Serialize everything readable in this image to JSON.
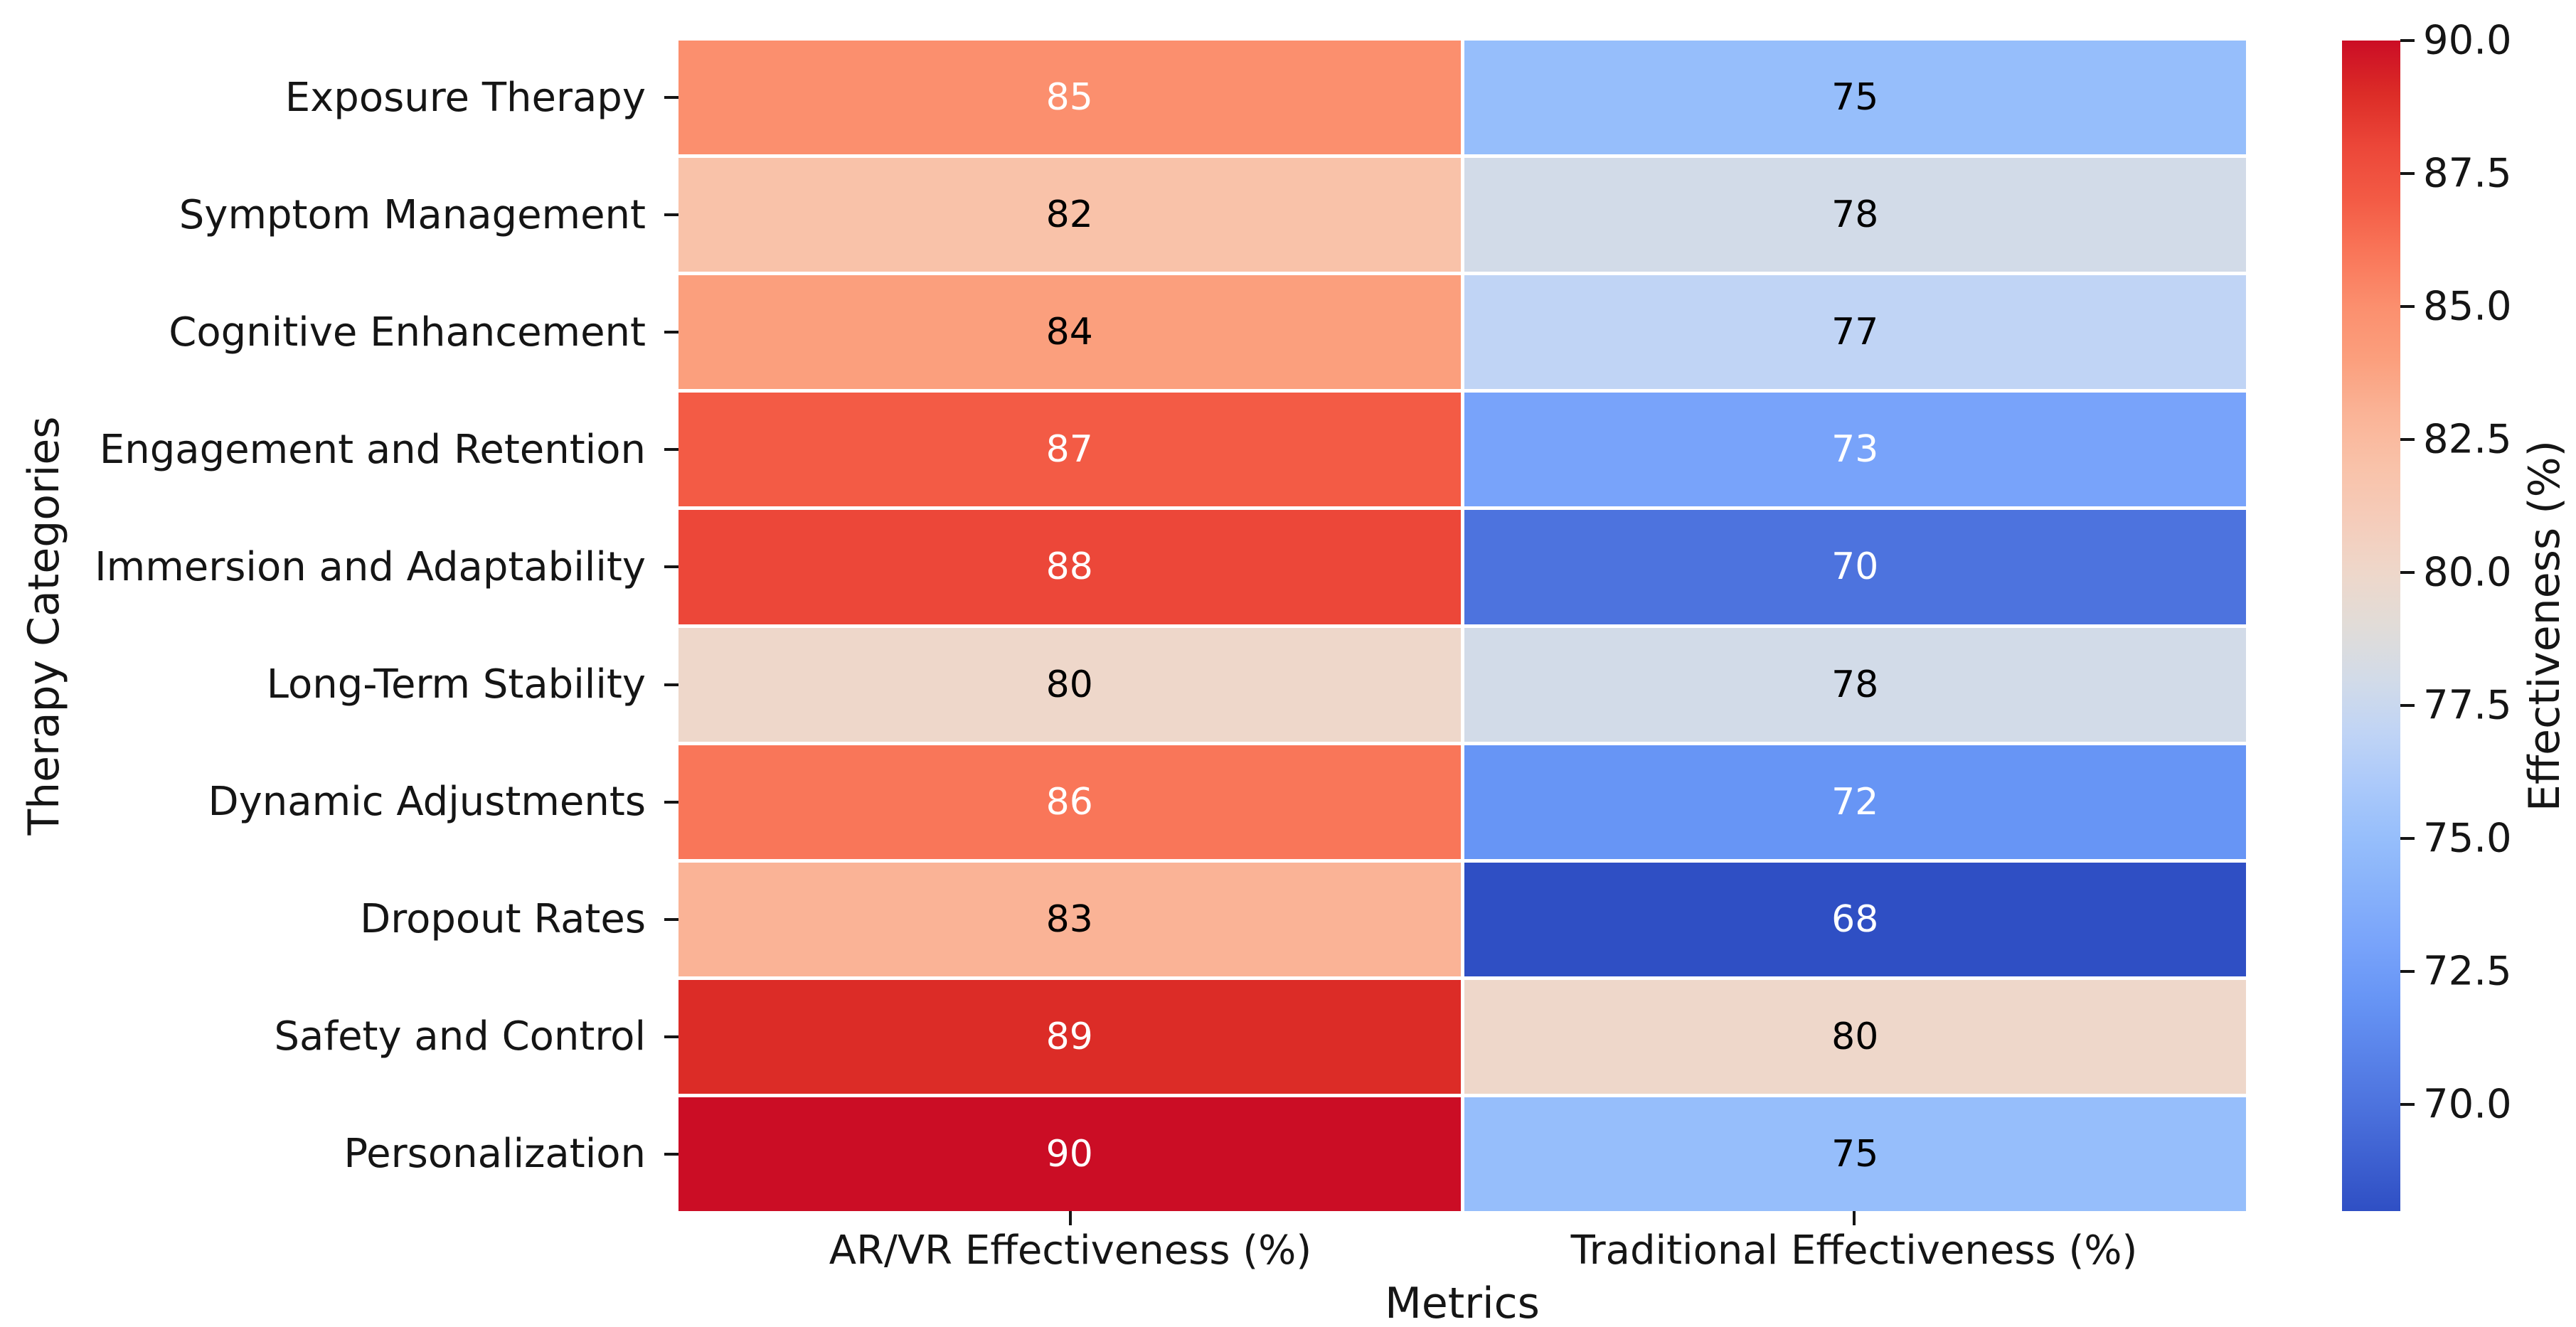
{
  "chart_data": {
    "type": "heatmap",
    "xlabel": "Metrics",
    "ylabel": "Therapy Categories",
    "columns": [
      "AR/VR Effectiveness (%)",
      "Traditional Effectiveness (%)"
    ],
    "rows": [
      "Exposure Therapy",
      "Symptom Management",
      "Cognitive Enhancement",
      "Engagement and Retention",
      "Immersion and Adaptability",
      "Long-Term Stability",
      "Dynamic Adjustments",
      "Dropout Rates",
      "Safety and Control",
      "Personalization"
    ],
    "values": [
      [
        85,
        75
      ],
      [
        82,
        78
      ],
      [
        84,
        77
      ],
      [
        87,
        73
      ],
      [
        88,
        70
      ],
      [
        80,
        78
      ],
      [
        86,
        72
      ],
      [
        83,
        68
      ],
      [
        89,
        80
      ],
      [
        90,
        75
      ]
    ],
    "colormap": "coolwarm",
    "grid": false,
    "palette": {
      "68": {
        "bg": "#2f4fc4",
        "fg": "#ffffff"
      },
      "70": {
        "bg": "#4d73de",
        "fg": "#ffffff"
      },
      "72": {
        "bg": "#6795f5",
        "fg": "#ffffff"
      },
      "73": {
        "bg": "#78a3fa",
        "fg": "#ffffff"
      },
      "75": {
        "bg": "#96befb",
        "fg": "#000000"
      },
      "77": {
        "bg": "#c0d4f5",
        "fg": "#000000"
      },
      "78": {
        "bg": "#d2dbe8",
        "fg": "#000000"
      },
      "80": {
        "bg": "#eed7ca",
        "fg": "#000000"
      },
      "82": {
        "bg": "#f9c2a9",
        "fg": "#000000"
      },
      "83": {
        "bg": "#fab396",
        "fg": "#000000"
      },
      "84": {
        "bg": "#fb9f7d",
        "fg": "#000000"
      },
      "85": {
        "bg": "#fb8f6e",
        "fg": "#ffffff"
      },
      "86": {
        "bg": "#f97659",
        "fg": "#ffffff"
      },
      "87": {
        "bg": "#f35b45",
        "fg": "#ffffff"
      },
      "88": {
        "bg": "#ec4739",
        "fg": "#ffffff"
      },
      "89": {
        "bg": "#dc2c27",
        "fg": "#ffffff"
      },
      "90": {
        "bg": "#cb0d25",
        "fg": "#ffffff"
      }
    },
    "colorbar": {
      "label": "Effectiveness (%)",
      "vmin": 68,
      "vmax": 90,
      "ticks": [
        {
          "label": "90.0",
          "pct": 0
        },
        {
          "label": "87.5",
          "pct": 11.364
        },
        {
          "label": "85.0",
          "pct": 22.727
        },
        {
          "label": "82.5",
          "pct": 34.091
        },
        {
          "label": "80.0",
          "pct": 45.455
        },
        {
          "label": "77.5",
          "pct": 56.818
        },
        {
          "label": "75.0",
          "pct": 68.182
        },
        {
          "label": "72.5",
          "pct": 79.545
        },
        {
          "label": "70.0",
          "pct": 90.909
        }
      ],
      "gradient_stops": [
        {
          "pct": 0.0,
          "color": "#cb0d25"
        },
        {
          "pct": 4.55,
          "color": "#dc2c27"
        },
        {
          "pct": 9.09,
          "color": "#ec4739"
        },
        {
          "pct": 13.64,
          "color": "#f35b45"
        },
        {
          "pct": 18.18,
          "color": "#f97659"
        },
        {
          "pct": 22.73,
          "color": "#fb8f6e"
        },
        {
          "pct": 27.27,
          "color": "#fb9f7d"
        },
        {
          "pct": 31.82,
          "color": "#fab396"
        },
        {
          "pct": 36.36,
          "color": "#f9c2a9"
        },
        {
          "pct": 40.91,
          "color": "#f5ccba"
        },
        {
          "pct": 45.45,
          "color": "#eed7ca"
        },
        {
          "pct": 50.0,
          "color": "#e1dcd8"
        },
        {
          "pct": 54.55,
          "color": "#d2dbe8"
        },
        {
          "pct": 59.09,
          "color": "#c0d4f5"
        },
        {
          "pct": 63.64,
          "color": "#abc9fa"
        },
        {
          "pct": 68.18,
          "color": "#96befb"
        },
        {
          "pct": 72.73,
          "color": "#87b1fa"
        },
        {
          "pct": 77.27,
          "color": "#78a3fa"
        },
        {
          "pct": 81.82,
          "color": "#6795f5"
        },
        {
          "pct": 86.36,
          "color": "#5a84ea"
        },
        {
          "pct": 90.91,
          "color": "#4d73de"
        },
        {
          "pct": 95.45,
          "color": "#3e61d1"
        },
        {
          "pct": 100.0,
          "color": "#2f4fc4"
        }
      ]
    }
  }
}
